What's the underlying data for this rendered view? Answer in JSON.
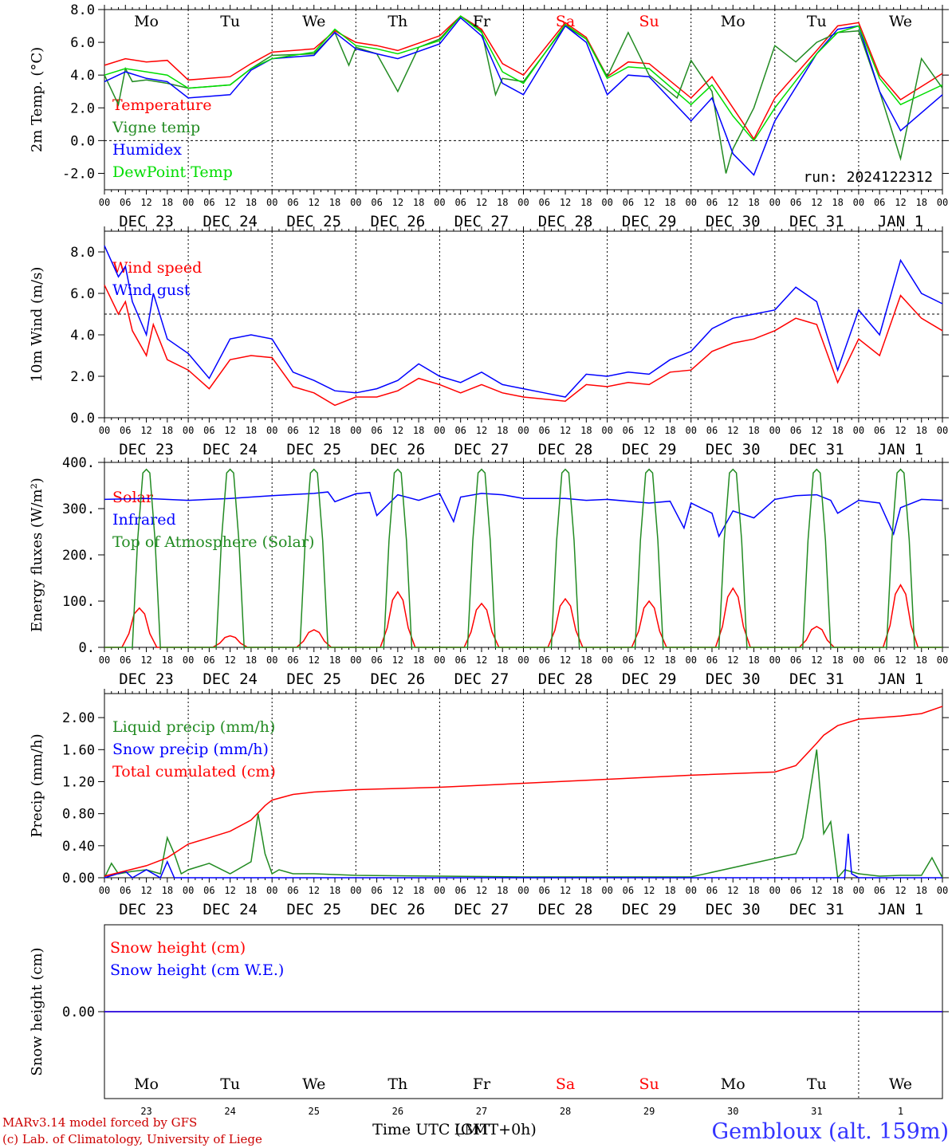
{
  "station": "Gembloux (alt. 159m)",
  "credits": [
    "MARv3.14 model forced by GFS",
    "(c) Lab. of Climatology, University of Liege"
  ],
  "time_axis_label": "Time UTC (GMT+0h)",
  "time_axis_label_overlay": "LMT",
  "run_label": "run: 2024122312",
  "days": [
    {
      "dow": "Mo",
      "date": "DEC 23",
      "num": "23",
      "weekend": false
    },
    {
      "dow": "Tu",
      "date": "DEC 24",
      "num": "24",
      "weekend": false
    },
    {
      "dow": "We",
      "date": "DEC 25",
      "num": "25",
      "weekend": false
    },
    {
      "dow": "Th",
      "date": "DEC 26",
      "num": "26",
      "weekend": false
    },
    {
      "dow": "Fr",
      "date": "DEC 27",
      "num": "27",
      "weekend": false
    },
    {
      "dow": "Sa",
      "date": "DEC 28",
      "num": "28",
      "weekend": true
    },
    {
      "dow": "Su",
      "date": "DEC 29",
      "num": "29",
      "weekend": true
    },
    {
      "dow": "Mo",
      "date": "DEC 30",
      "num": "30",
      "weekend": false
    },
    {
      "dow": "Tu",
      "date": "DEC 31",
      "num": "31",
      "weekend": false
    },
    {
      "dow": "We",
      "date": "JAN  1",
      "num": "1",
      "weekend": false
    }
  ],
  "hour_labels": [
    "00",
    "06",
    "12",
    "18"
  ],
  "colors": {
    "red": "#ff0000",
    "green": "#228b22",
    "blue": "#0000ff",
    "lightgreen": "#00dd00",
    "station": "#3333ff",
    "weekend": "#ff0000",
    "credits": "#cc0000"
  },
  "chart_data": [
    {
      "id": "temp",
      "type": "line",
      "ylabel": "2m Temp. (°C)",
      "ylim": [
        -3.0,
        8.0
      ],
      "yticks": [
        8.0,
        6.0,
        4.0,
        2.0,
        0.0,
        -2.0
      ],
      "ytick_labels": [
        "8.0",
        "6.0",
        "4.0",
        "2.0",
        "0.0",
        "-2.0"
      ],
      "reference_line": 0.0,
      "x_unit": "hours since DEC 23 00 UTC",
      "series": [
        {
          "name": "Temperature",
          "color": "red",
          "x": [
            0,
            6,
            12,
            18,
            24,
            36,
            42,
            48,
            60,
            66,
            72,
            78,
            84,
            96,
            102,
            108,
            114,
            120,
            132,
            138,
            144,
            150,
            156,
            168,
            174,
            180,
            186,
            192,
            204,
            210,
            216,
            222,
            228,
            240
          ],
          "y": [
            4.6,
            5.0,
            4.8,
            4.9,
            3.7,
            3.9,
            4.7,
            5.4,
            5.6,
            6.7,
            6.0,
            5.8,
            5.5,
            6.4,
            7.6,
            6.8,
            4.7,
            4.0,
            7.2,
            6.3,
            3.9,
            4.8,
            4.7,
            2.6,
            3.9,
            2.0,
            0.1,
            2.6,
            5.5,
            7.0,
            7.2,
            4.0,
            2.5,
            4.1
          ]
        },
        {
          "name": "Vigne temp",
          "color": "green",
          "x": [
            0,
            4,
            6,
            8,
            12,
            18,
            24,
            36,
            42,
            48,
            60,
            66,
            70,
            72,
            78,
            84,
            90,
            96,
            102,
            108,
            112,
            114,
            120,
            132,
            138,
            144,
            150,
            156,
            164,
            168,
            174,
            178,
            180,
            186,
            192,
            198,
            204,
            210,
            216,
            222,
            228,
            234,
            240
          ],
          "y": [
            4.0,
            2.2,
            4.4,
            3.6,
            3.7,
            3.5,
            3.2,
            3.4,
            4.4,
            5.2,
            5.3,
            6.6,
            4.6,
            5.7,
            5.3,
            3.0,
            5.7,
            6.2,
            7.6,
            6.7,
            2.8,
            3.8,
            3.6,
            7.0,
            6.2,
            3.9,
            6.6,
            4.0,
            2.6,
            4.9,
            3.0,
            -2.0,
            -0.5,
            2.0,
            5.8,
            4.8,
            6.0,
            6.6,
            6.7,
            3.0,
            -1.1,
            5.0,
            3.2
          ]
        },
        {
          "name": "Humidex",
          "color": "blue",
          "x": [
            0,
            6,
            12,
            18,
            24,
            36,
            42,
            48,
            60,
            66,
            72,
            78,
            84,
            96,
            102,
            108,
            114,
            120,
            132,
            138,
            144,
            150,
            156,
            168,
            174,
            180,
            186,
            192,
            204,
            210,
            216,
            222,
            228,
            240
          ],
          "y": [
            3.6,
            4.2,
            3.8,
            3.6,
            2.6,
            2.8,
            4.3,
            5.0,
            5.2,
            6.6,
            5.6,
            5.3,
            5.0,
            5.9,
            7.5,
            6.4,
            3.5,
            2.8,
            7.0,
            6.0,
            2.8,
            4.0,
            3.9,
            1.2,
            2.6,
            -0.8,
            -2.1,
            1.2,
            5.3,
            6.8,
            7.0,
            3.0,
            0.6,
            2.8
          ]
        },
        {
          "name": "DewPoint Temp",
          "color": "lightgreen",
          "x": [
            0,
            6,
            12,
            18,
            24,
            36,
            42,
            48,
            60,
            66,
            72,
            78,
            84,
            96,
            102,
            108,
            114,
            120,
            132,
            138,
            144,
            150,
            156,
            168,
            174,
            180,
            186,
            192,
            204,
            210,
            216,
            222,
            228,
            240
          ],
          "y": [
            4.0,
            4.4,
            4.2,
            4.0,
            3.2,
            3.4,
            4.4,
            5.0,
            5.4,
            6.8,
            5.8,
            5.6,
            5.3,
            6.1,
            7.6,
            6.6,
            4.2,
            3.5,
            7.1,
            6.2,
            3.8,
            4.5,
            4.4,
            2.2,
            3.4,
            1.5,
            0.0,
            2.0,
            5.3,
            6.6,
            7.0,
            3.8,
            2.2,
            3.4
          ]
        }
      ]
    },
    {
      "id": "wind",
      "type": "line",
      "ylabel": "10m Wind (m/s)",
      "ylim": [
        0.0,
        9.0
      ],
      "yticks": [
        8.0,
        6.0,
        4.0,
        2.0,
        0.0
      ],
      "ytick_labels": [
        "8.0",
        "6.0",
        "4.0",
        "2.0",
        "0.0"
      ],
      "reference_line": 5.0,
      "series": [
        {
          "name": "Wind speed",
          "color": "red",
          "x": [
            0,
            4,
            6,
            8,
            12,
            14,
            18,
            24,
            30,
            36,
            42,
            48,
            54,
            60,
            66,
            72,
            78,
            84,
            90,
            96,
            102,
            108,
            114,
            120,
            126,
            132,
            138,
            144,
            150,
            156,
            162,
            168,
            174,
            180,
            186,
            192,
            198,
            204,
            210,
            216,
            222,
            228,
            234,
            240
          ],
          "y": [
            6.4,
            5.0,
            5.6,
            4.2,
            3.0,
            4.5,
            2.8,
            2.3,
            1.4,
            2.8,
            3.0,
            2.9,
            1.5,
            1.2,
            0.6,
            1.0,
            1.0,
            1.3,
            1.9,
            1.6,
            1.2,
            1.6,
            1.2,
            1.0,
            0.9,
            0.8,
            1.6,
            1.5,
            1.7,
            1.6,
            2.2,
            2.3,
            3.2,
            3.6,
            3.8,
            4.2,
            4.8,
            4.5,
            1.7,
            3.8,
            3.0,
            5.9,
            4.8,
            4.2
          ]
        },
        {
          "name": "Wind gust",
          "color": "blue",
          "x": [
            0,
            4,
            6,
            8,
            12,
            14,
            18,
            24,
            30,
            36,
            42,
            48,
            54,
            60,
            66,
            72,
            78,
            84,
            90,
            96,
            102,
            108,
            114,
            120,
            126,
            132,
            138,
            144,
            150,
            156,
            162,
            168,
            174,
            180,
            186,
            192,
            198,
            204,
            210,
            216,
            222,
            228,
            234,
            240
          ],
          "y": [
            8.3,
            6.8,
            7.3,
            5.6,
            4.0,
            6.0,
            3.8,
            3.1,
            1.9,
            3.8,
            4.0,
            3.8,
            2.2,
            1.8,
            1.3,
            1.2,
            1.4,
            1.8,
            2.6,
            2.0,
            1.7,
            2.2,
            1.6,
            1.4,
            1.2,
            1.0,
            2.1,
            2.0,
            2.2,
            2.1,
            2.8,
            3.2,
            4.3,
            4.8,
            5.0,
            5.2,
            6.3,
            5.6,
            2.3,
            5.2,
            4.0,
            7.6,
            6.0,
            5.5
          ]
        }
      ]
    },
    {
      "id": "energy",
      "type": "line",
      "ylabel": "Energy fluxes (W/m²)",
      "ylim": [
        0,
        400
      ],
      "yticks": [
        400,
        300,
        200,
        100,
        0
      ],
      "ytick_labels": [
        "400.",
        "300.",
        "200.",
        "100.",
        "0."
      ],
      "series": [
        {
          "name": "Solar",
          "color": "red",
          "peaks": [
            {
              "c": 10,
              "v": 85
            },
            {
              "c": 36,
              "v": 25
            },
            {
              "c": 60,
              "v": 38
            },
            {
              "c": 84,
              "v": 120
            },
            {
              "c": 108,
              "v": 95
            },
            {
              "c": 132,
              "v": 105
            },
            {
              "c": 156,
              "v": 100
            },
            {
              "c": 180,
              "v": 128
            },
            {
              "c": 204,
              "v": 45
            },
            {
              "c": 228,
              "v": 135
            }
          ]
        },
        {
          "name": "Infrared",
          "color": "blue",
          "x": [
            0,
            12,
            24,
            36,
            48,
            60,
            64,
            66,
            72,
            76,
            78,
            84,
            90,
            96,
            100,
            102,
            108,
            114,
            120,
            132,
            138,
            144,
            156,
            162,
            166,
            168,
            174,
            176,
            180,
            186,
            192,
            198,
            204,
            208,
            210,
            216,
            222,
            226,
            228,
            234,
            240
          ],
          "y": [
            320,
            322,
            318,
            322,
            328,
            333,
            336,
            315,
            332,
            335,
            285,
            330,
            318,
            333,
            272,
            325,
            333,
            330,
            322,
            322,
            318,
            320,
            312,
            316,
            258,
            312,
            290,
            240,
            295,
            280,
            320,
            328,
            330,
            318,
            290,
            318,
            312,
            245,
            302,
            320,
            318
          ]
        },
        {
          "name": "Top of Atmosphere (Solar)",
          "color": "green",
          "peak_value": 385,
          "day_start": 8,
          "day_end": 16
        }
      ]
    },
    {
      "id": "precip",
      "type": "line",
      "ylabel": "Precip (mm/h)",
      "ylim": [
        0.0,
        2.3
      ],
      "yticks": [
        2.0,
        1.6,
        1.2,
        0.8,
        0.4,
        0.0
      ],
      "ytick_labels": [
        "2.00",
        "1.60",
        "1.20",
        "0.80",
        "0.40",
        "0.00"
      ],
      "series": [
        {
          "name": "Liquid precip (mm/h)",
          "color": "green",
          "x": [
            0,
            2,
            4,
            8,
            12,
            16,
            18,
            20,
            22,
            24,
            30,
            36,
            42,
            44,
            46,
            48,
            50,
            54,
            60,
            66,
            72,
            96,
            120,
            168,
            198,
            200,
            204,
            206,
            208,
            210,
            212,
            216,
            222,
            228,
            234,
            237,
            240
          ],
          "y": [
            0.0,
            0.18,
            0.05,
            0.08,
            0.1,
            0.05,
            0.5,
            0.3,
            0.05,
            0.1,
            0.18,
            0.05,
            0.2,
            0.8,
            0.3,
            0.05,
            0.1,
            0.05,
            0.05,
            0.04,
            0.03,
            0.02,
            0.01,
            0.01,
            0.3,
            0.5,
            1.6,
            0.55,
            0.7,
            0.0,
            0.1,
            0.05,
            0.02,
            0.03,
            0.03,
            0.25,
            0.0
          ]
        },
        {
          "name": "Snow precip (mm/h)",
          "color": "blue",
          "x": [
            0,
            6,
            8,
            12,
            16,
            18,
            20,
            24,
            210,
            212,
            213,
            214,
            216,
            240
          ],
          "y": [
            0.0,
            0.08,
            0.0,
            0.1,
            0.0,
            0.2,
            0.0,
            0.0,
            0.0,
            0.0,
            0.55,
            0.05,
            0.0,
            0.0
          ]
        },
        {
          "name": "Total cumulated (cm)",
          "color": "red",
          "x": [
            0,
            12,
            18,
            24,
            30,
            36,
            42,
            46,
            48,
            54,
            60,
            72,
            96,
            120,
            144,
            168,
            192,
            198,
            204,
            206,
            210,
            216,
            228,
            234,
            240
          ],
          "y": [
            0.02,
            0.15,
            0.25,
            0.42,
            0.5,
            0.58,
            0.72,
            0.9,
            0.97,
            1.04,
            1.07,
            1.1,
            1.13,
            1.18,
            1.23,
            1.28,
            1.32,
            1.4,
            1.68,
            1.78,
            1.9,
            1.98,
            2.02,
            2.05,
            2.14
          ]
        }
      ]
    },
    {
      "id": "snow",
      "type": "line",
      "ylabel": "Snow height (cm)",
      "ylim": [
        -1.0,
        1.0
      ],
      "yticks": [
        0.0
      ],
      "ytick_labels": [
        "0.00"
      ],
      "series": [
        {
          "name": "Snow height (cm)",
          "color": "red",
          "x": [
            0,
            240
          ],
          "y": [
            0.0,
            0.0
          ]
        },
        {
          "name": "Snow height (cm W.E.)",
          "color": "blue",
          "x": [
            0,
            240
          ],
          "y": [
            0.0,
            0.0
          ]
        }
      ]
    }
  ]
}
